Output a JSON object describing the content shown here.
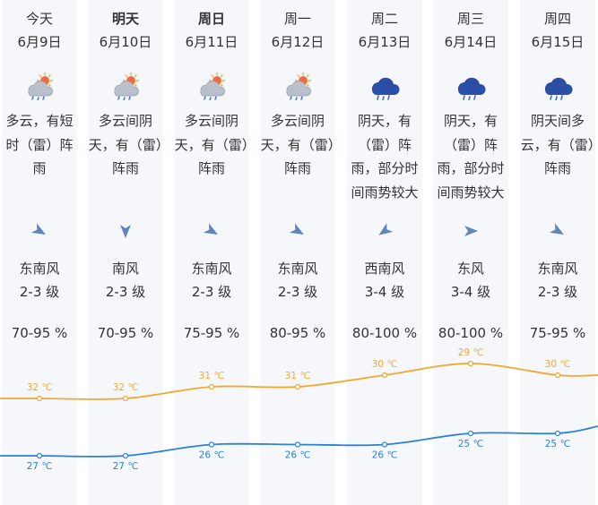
{
  "days": [
    {
      "day": "今天",
      "bold": false,
      "date": "6月9日",
      "icon": "cloud-sun-rain-icon",
      "desc": "多云，有短时（雷）阵雨",
      "wind_dir": "东南风",
      "wind_level": "2-3 级",
      "humidity": "70-95 %",
      "high": "32 ℃",
      "low": "27 ℃",
      "arrow_deg": 120
    },
    {
      "day": "明天",
      "bold": true,
      "date": "6月10日",
      "icon": "cloud-sun-rain-icon",
      "desc": "多云间阴天，有（雷）阵雨",
      "wind_dir": "南风",
      "wind_level": "2-3 级",
      "humidity": "70-95 %",
      "high": "32 ℃",
      "low": "27 ℃",
      "arrow_deg": 180
    },
    {
      "day": "周日",
      "bold": true,
      "date": "6月11日",
      "icon": "cloud-sun-rain-icon",
      "desc": "多云间阴天，有（雷）阵雨",
      "wind_dir": "东南风",
      "wind_level": "2-3 级",
      "humidity": "75-95 %",
      "high": "31 ℃",
      "low": "26 ℃",
      "arrow_deg": 120
    },
    {
      "day": "周一",
      "bold": false,
      "date": "6月12日",
      "icon": "cloud-sun-rain-icon",
      "desc": "多云间阴天，有（雷）阵雨",
      "wind_dir": "东南风",
      "wind_level": "2-3 级",
      "humidity": "80-95 %",
      "high": "31 ℃",
      "low": "26 ℃",
      "arrow_deg": 120
    },
    {
      "day": "周二",
      "bold": false,
      "date": "6月13日",
      "icon": "cloud-rain-icon",
      "desc": "阴天，有（雷）阵雨，部分时间雨势较大",
      "wind_dir": "西南风",
      "wind_level": "3-4 级",
      "humidity": "80-100 %",
      "high": "30 ℃",
      "low": "26 ℃",
      "arrow_deg": 235
    },
    {
      "day": "周三",
      "bold": false,
      "date": "6月14日",
      "icon": "cloud-rain-icon",
      "desc": "阴天，有（雷）阵雨，部分时间雨势较大",
      "wind_dir": "东风",
      "wind_level": "3-4 级",
      "humidity": "80-100 %",
      "high": "29 ℃",
      "low": "25 ℃",
      "arrow_deg": 90
    },
    {
      "day": "周四",
      "bold": false,
      "date": "6月15日",
      "icon": "cloud-rain-icon",
      "desc": "阴天间多云，有（雷）阵雨",
      "wind_dir": "东南风",
      "wind_level": "2-3 级",
      "humidity": "75-95 %",
      "high": "30 ℃",
      "low": "25 ℃",
      "arrow_deg": 120
    }
  ],
  "chart_data": {
    "type": "line",
    "series": [
      {
        "values": [
          32,
          32,
          31,
          31,
          30,
          29,
          30
        ],
        "color": "#f0a833"
      },
      {
        "values": [
          27,
          27,
          26,
          26,
          26,
          25,
          25
        ],
        "color": "#2b82d9"
      }
    ]
  }
}
